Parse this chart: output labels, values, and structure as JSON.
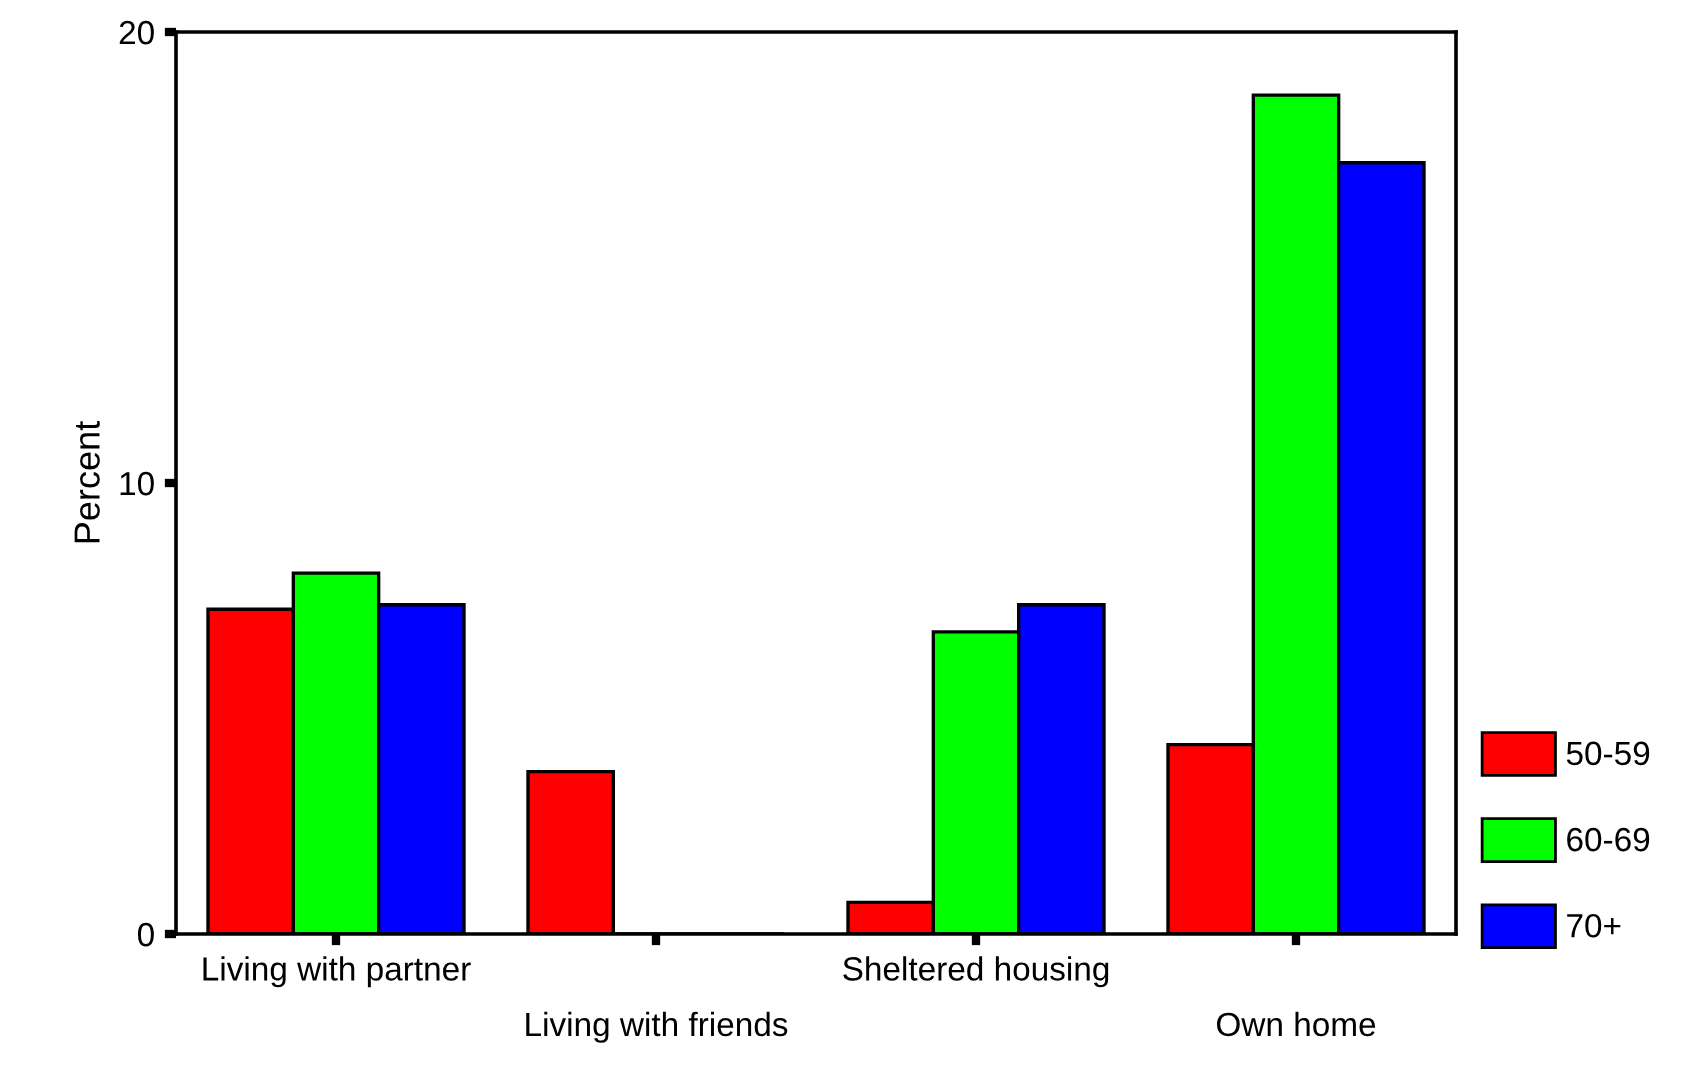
{
  "chart_data": {
    "type": "bar",
    "ylabel": "Percent",
    "categories": [
      "Living with partner",
      "Living with friends",
      "Sheltered housing",
      "Own home"
    ],
    "series": [
      {
        "name": "50-59",
        "color": "#ff0000",
        "values": [
          7.2,
          3.6,
          0.7,
          4.2
        ]
      },
      {
        "name": "60-69",
        "color": "#00ff00",
        "values": [
          8.0,
          0,
          6.7,
          18.6
        ]
      },
      {
        "name": "70+",
        "color": "#0000ff",
        "values": [
          7.3,
          0,
          7.3,
          17.1
        ]
      }
    ],
    "ylim": [
      0,
      20
    ],
    "yticks": [
      0,
      10,
      20
    ],
    "grid": false,
    "legend": "bottom right"
  }
}
